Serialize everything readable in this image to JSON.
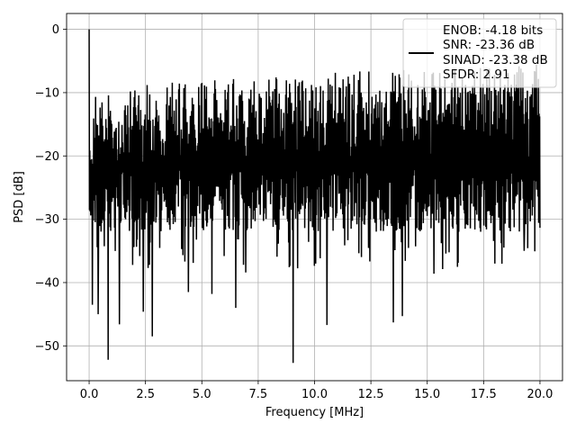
{
  "chart_data": {
    "type": "line",
    "title": "",
    "xlabel": "Frequency [MHz]",
    "ylabel": "PSD [dB]",
    "xlim": [
      -1.0,
      21.0
    ],
    "ylim": [
      -55.5,
      2.5
    ],
    "xticks": [
      0.0,
      2.5,
      5.0,
      7.5,
      10.0,
      12.5,
      15.0,
      17.5,
      20.0
    ],
    "xtick_labels": [
      "0.0",
      "2.5",
      "5.0",
      "7.5",
      "10.0",
      "12.5",
      "15.0",
      "17.5",
      "20.0"
    ],
    "yticks": [
      0,
      -10,
      -20,
      -30,
      -40,
      -50
    ],
    "ytick_labels": [
      "0",
      "−10",
      "−20",
      "−30",
      "−40",
      "−50"
    ],
    "grid": true,
    "legend_position": "top-right",
    "series": [
      {
        "name": "ENOB: -4.18 bits\nSNR: -23.36 dB\nSINAD: -23.38 dB\nSFDR: 2.91",
        "legend_lines": [
          "ENOB: -4.18 bits",
          "SNR: -23.36 dB",
          "SINAD: -23.38 dB",
          "SFDR: 2.91"
        ],
        "color": "#000000",
        "x_range": [
          0.0,
          20.0
        ],
        "peak": {
          "x": 0.0,
          "y": 0.0
        },
        "noise_upper_envelope_start": -13,
        "noise_upper_envelope_end": -8,
        "noise_lower_typical": -30,
        "deep_dips": [
          {
            "x": 0.15,
            "y": -43.5
          },
          {
            "x": 0.4,
            "y": -45.0
          },
          {
            "x": 0.85,
            "y": -52.2
          },
          {
            "x": 1.35,
            "y": -46.6
          },
          {
            "x": 2.4,
            "y": -44.6
          },
          {
            "x": 2.8,
            "y": -48.5
          },
          {
            "x": 4.4,
            "y": -41.5
          },
          {
            "x": 5.45,
            "y": -41.8
          },
          {
            "x": 6.5,
            "y": -44.0
          },
          {
            "x": 6.95,
            "y": -38.4
          },
          {
            "x": 9.05,
            "y": -52.7
          },
          {
            "x": 10.05,
            "y": -37.0
          },
          {
            "x": 10.55,
            "y": -46.7
          },
          {
            "x": 13.5,
            "y": -46.3
          },
          {
            "x": 13.9,
            "y": -45.3
          },
          {
            "x": 15.3,
            "y": -38.6
          },
          {
            "x": 18.0,
            "y": -37.0
          },
          {
            "x": 19.3,
            "y": -35.0
          }
        ]
      }
    ]
  }
}
